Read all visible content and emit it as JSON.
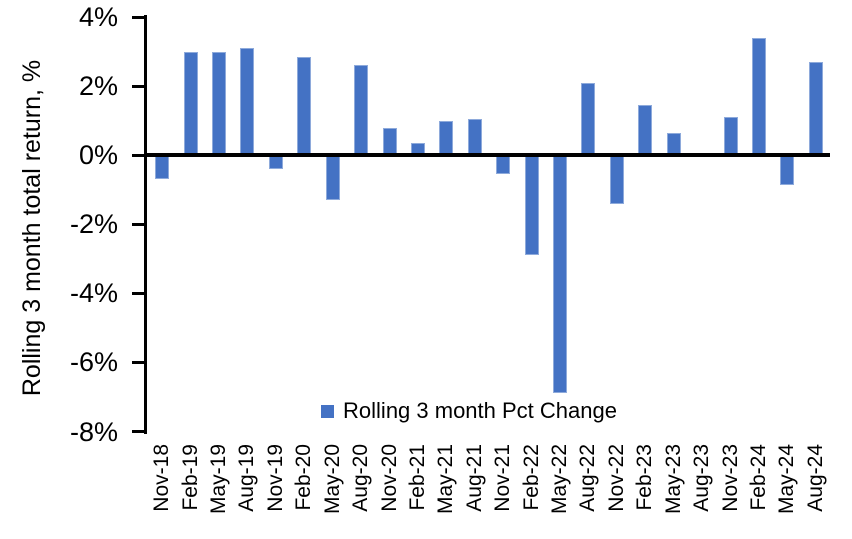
{
  "chart_data": {
    "type": "bar",
    "title": "",
    "xlabel": "",
    "ylabel": "Rolling 3 month total return, %",
    "categories": [
      "Nov-18",
      "Feb-19",
      "May-19",
      "Aug-19",
      "Nov-19",
      "Feb-20",
      "May-20",
      "Aug-20",
      "Nov-20",
      "Feb-21",
      "May-21",
      "Aug-21",
      "Nov-21",
      "Feb-22",
      "May-22",
      "Aug-22",
      "Nov-22",
      "Feb-23",
      "May-23",
      "Aug-23",
      "Nov-23",
      "Feb-24",
      "May-24",
      "Aug-24"
    ],
    "values": [
      -0.7,
      3.0,
      3.0,
      3.1,
      -0.4,
      2.85,
      -1.3,
      2.6,
      0.8,
      0.35,
      1.0,
      1.05,
      -0.55,
      -2.9,
      -6.9,
      2.1,
      -1.4,
      1.45,
      0.65,
      0.0,
      1.1,
      3.4,
      -0.85,
      2.7
    ],
    "ylim": [
      -8,
      4
    ],
    "ytick_step": 2,
    "yticks": [
      {
        "value": 4,
        "label": "4%"
      },
      {
        "value": 2,
        "label": "2%"
      },
      {
        "value": 0,
        "label": "0%"
      },
      {
        "value": -2,
        "label": "-2%"
      },
      {
        "value": -4,
        "label": "-4%"
      },
      {
        "value": -6,
        "label": "-6%"
      },
      {
        "value": -8,
        "label": "-8%"
      }
    ],
    "grid": false,
    "legend": {
      "label": "Rolling 3 month Pct Change",
      "position": "bottom-inside",
      "swatch_color": "#4472C4"
    },
    "bar_color": "#4472C4",
    "bar_edge_color": "#AEC2E8",
    "axis_color": "#000000",
    "text_color": "#000000",
    "background_color": "#FFFFFF"
  }
}
